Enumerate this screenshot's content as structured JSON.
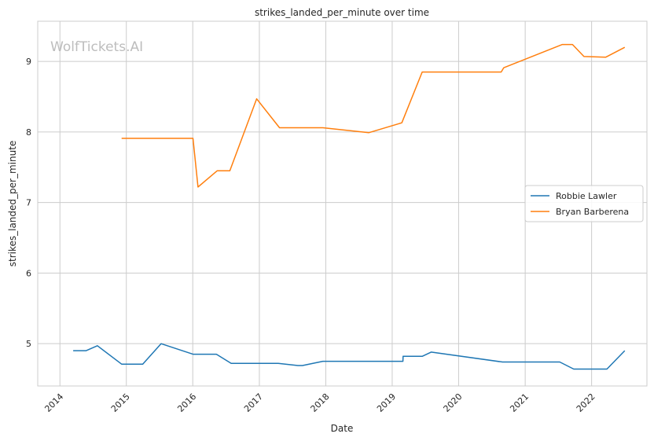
{
  "watermark": "WolfTickets.AI",
  "chart_data": {
    "type": "line",
    "title": "strikes_landed_per_minute over time",
    "xlabel": "Date",
    "ylabel": "strikes_landed_per_minute",
    "xlim": [
      "2013-09-01",
      "2022-11-01"
    ],
    "ylim": [
      4.4,
      9.57
    ],
    "x_ticks": [
      "2014",
      "2015",
      "2016",
      "2017",
      "2018",
      "2019",
      "2020",
      "2021",
      "2022"
    ],
    "y_ticks": [
      5,
      6,
      7,
      8,
      9
    ],
    "grid": true,
    "legend_position": "center-right",
    "series": [
      {
        "name": "Robbie Lawler",
        "color": "#1f77b4",
        "points": [
          [
            "2014-03-15",
            4.9
          ],
          [
            "2014-05-25",
            4.9
          ],
          [
            "2014-07-26",
            4.97
          ],
          [
            "2014-12-06",
            4.71
          ],
          [
            "2015-04-01",
            4.71
          ],
          [
            "2015-07-11",
            5.0
          ],
          [
            "2016-01-02",
            4.85
          ],
          [
            "2016-05-10",
            4.85
          ],
          [
            "2016-07-30",
            4.72
          ],
          [
            "2017-04-15",
            4.72
          ],
          [
            "2017-08-01",
            4.69
          ],
          [
            "2017-08-26",
            4.69
          ],
          [
            "2017-12-16",
            4.75
          ],
          [
            "2019-03-01",
            4.75
          ],
          [
            "2019-03-02",
            4.82
          ],
          [
            "2019-06-15",
            4.82
          ],
          [
            "2019-08-03",
            4.88
          ],
          [
            "2020-08-29",
            4.74
          ],
          [
            "2021-07-10",
            4.74
          ],
          [
            "2021-09-25",
            4.64
          ],
          [
            "2022-03-26",
            4.64
          ],
          [
            "2022-07-02",
            4.9
          ]
        ]
      },
      {
        "name": "Bryan Barberena",
        "color": "#ff7f0e",
        "points": [
          [
            "2014-12-06",
            7.91
          ],
          [
            "2016-01-02",
            7.91
          ],
          [
            "2016-01-30",
            7.22
          ],
          [
            "2016-05-14",
            7.45
          ],
          [
            "2016-07-23",
            7.45
          ],
          [
            "2016-12-17",
            8.47
          ],
          [
            "2017-04-22",
            8.06
          ],
          [
            "2017-08-01",
            8.06
          ],
          [
            "2017-12-16",
            8.06
          ],
          [
            "2018-08-25",
            7.99
          ],
          [
            "2019-02-23",
            8.13
          ],
          [
            "2019-06-15",
            8.85
          ],
          [
            "2020-08-22",
            8.85
          ],
          [
            "2020-09-05",
            8.91
          ],
          [
            "2021-07-24",
            9.24
          ],
          [
            "2021-09-18",
            9.24
          ],
          [
            "2021-11-20",
            9.07
          ],
          [
            "2022-03-19",
            9.06
          ],
          [
            "2022-07-02",
            9.2
          ]
        ]
      }
    ]
  }
}
